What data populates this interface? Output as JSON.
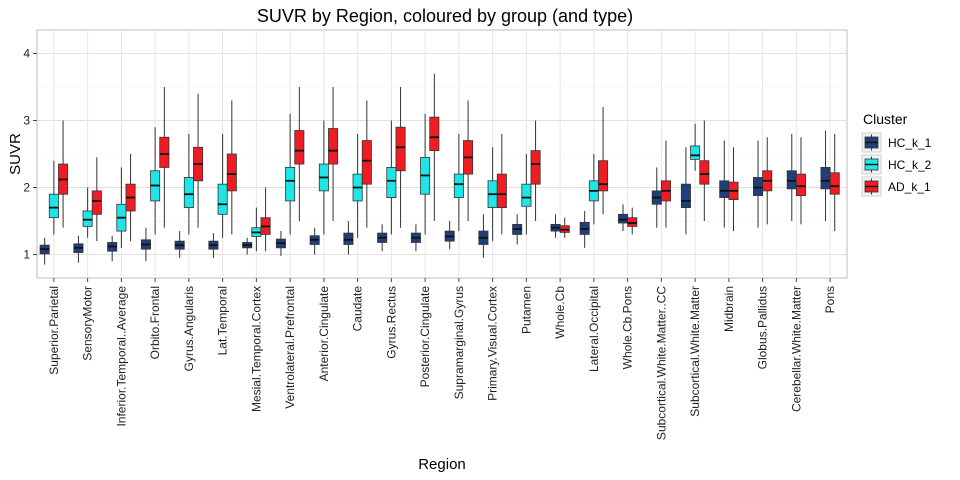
{
  "chart_data": {
    "type": "boxplot",
    "title": "SUVR by Region, coloured by group (and type)",
    "xlabel": "Region",
    "ylabel": "SUVR",
    "ylim": [
      0.65,
      4.35
    ],
    "yticks": [
      1,
      2,
      3,
      4
    ],
    "grid": true,
    "legend_position": "right",
    "legend_title": "Cluster",
    "groups": [
      {
        "name": "HC_k_1",
        "color": "#1f3f7a"
      },
      {
        "name": "HC_k_2",
        "color": "#1ee6e6"
      },
      {
        "name": "AD_k_1",
        "color": "#f01c24"
      }
    ],
    "categories": [
      "Superior.Parietal",
      "SensoryMotor",
      "Inferior.Temporal..Average",
      "Orbito.Frontal",
      "Gyrus.Angularis",
      "Lat.Temporal",
      "Mesial.Temporal.Cortex",
      "Ventrolateral.Prefrontal",
      "Anterior.Cingulate",
      "Caudate",
      "Gyrus.Rectus",
      "Posterior.Cingulate",
      "Supramarginal.Gyrus",
      "Primary.Visual.Cortex",
      "Putamen",
      "Whole.Cb",
      "Lateral.Occipital",
      "Whole.Cb.Pons",
      "Subcortical.White.Matter..CC",
      "Subcortical.White.Matter",
      "Midbrain",
      "Globus.Pallidus",
      "Cerebellar.White.Matter",
      "Pons"
    ],
    "boxes": [
      [
        [
          0.85,
          1.01,
          1.08,
          1.14,
          1.25
        ],
        [
          1.3,
          1.55,
          1.7,
          1.9,
          2.4
        ],
        [
          1.4,
          1.9,
          2.12,
          2.35,
          3.0
        ]
      ],
      [
        [
          0.88,
          1.03,
          1.1,
          1.16,
          1.28
        ],
        [
          1.25,
          1.42,
          1.52,
          1.65,
          2.0
        ],
        [
          1.2,
          1.6,
          1.8,
          1.95,
          2.45
        ]
      ],
      [
        [
          0.9,
          1.05,
          1.12,
          1.18,
          1.28
        ],
        [
          1.1,
          1.35,
          1.55,
          1.75,
          2.3
        ],
        [
          1.2,
          1.65,
          1.85,
          2.05,
          2.5
        ]
      ],
      [
        [
          0.9,
          1.08,
          1.15,
          1.22,
          1.4
        ],
        [
          1.3,
          1.8,
          2.03,
          2.25,
          2.9
        ],
        [
          1.4,
          2.3,
          2.5,
          2.75,
          3.5
        ]
      ],
      [
        [
          0.95,
          1.08,
          1.14,
          1.2,
          1.35
        ],
        [
          1.3,
          1.7,
          1.9,
          2.15,
          2.8
        ],
        [
          1.4,
          2.1,
          2.35,
          2.6,
          3.4
        ]
      ],
      [
        [
          0.95,
          1.08,
          1.14,
          1.2,
          1.32
        ],
        [
          1.25,
          1.6,
          1.75,
          2.05,
          2.8
        ],
        [
          1.3,
          1.95,
          2.2,
          2.5,
          3.3
        ]
      ],
      [
        [
          1.0,
          1.1,
          1.14,
          1.18,
          1.25
        ],
        [
          1.05,
          1.27,
          1.33,
          1.4,
          1.7
        ],
        [
          1.05,
          1.3,
          1.42,
          1.55,
          2.0
        ]
      ],
      [
        [
          0.98,
          1.1,
          1.17,
          1.23,
          1.35
        ],
        [
          1.3,
          1.8,
          2.1,
          2.3,
          3.1
        ],
        [
          1.5,
          2.35,
          2.55,
          2.85,
          3.5
        ]
      ],
      [
        [
          1.0,
          1.15,
          1.22,
          1.28,
          1.4
        ],
        [
          1.3,
          1.95,
          2.15,
          2.35,
          3.0
        ],
        [
          1.5,
          2.35,
          2.55,
          2.88,
          3.5
        ]
      ],
      [
        [
          1.0,
          1.15,
          1.22,
          1.32,
          1.5
        ],
        [
          1.25,
          1.8,
          2.0,
          2.2,
          2.8
        ],
        [
          1.4,
          2.05,
          2.4,
          2.7,
          3.3
        ]
      ],
      [
        [
          1.05,
          1.18,
          1.25,
          1.32,
          1.45
        ],
        [
          1.3,
          1.85,
          2.1,
          2.3,
          3.0
        ],
        [
          1.4,
          2.25,
          2.6,
          2.9,
          3.5
        ]
      ],
      [
        [
          1.05,
          1.18,
          1.25,
          1.32,
          1.45
        ],
        [
          1.3,
          1.9,
          2.18,
          2.45,
          3.1
        ],
        [
          1.5,
          2.55,
          2.75,
          3.05,
          3.7
        ]
      ],
      [
        [
          1.08,
          1.2,
          1.27,
          1.35,
          1.5
        ],
        [
          1.35,
          1.85,
          2.05,
          2.2,
          2.8
        ],
        [
          1.5,
          2.2,
          2.45,
          2.7,
          3.3
        ]
      ],
      [
        [
          0.95,
          1.15,
          1.25,
          1.35,
          1.6
        ],
        [
          1.2,
          1.7,
          1.9,
          2.1,
          2.6
        ],
        [
          1.3,
          1.7,
          1.9,
          2.2,
          2.8
        ]
      ],
      [
        [
          1.15,
          1.3,
          1.38,
          1.45,
          1.6
        ],
        [
          1.3,
          1.72,
          1.85,
          2.05,
          2.5
        ],
        [
          1.5,
          2.05,
          2.35,
          2.55,
          3.0
        ]
      ],
      [
        [
          1.25,
          1.35,
          1.4,
          1.45,
          1.6
        ],
        [
          null,
          null,
          null,
          null,
          null
        ],
        [
          1.25,
          1.33,
          1.37,
          1.43,
          1.55
        ]
      ],
      [
        [
          1.1,
          1.3,
          1.38,
          1.48,
          1.65
        ],
        [
          1.45,
          1.8,
          1.95,
          2.1,
          2.5
        ],
        [
          1.6,
          1.95,
          2.05,
          2.4,
          3.2
        ]
      ],
      [
        [
          1.35,
          1.47,
          1.52,
          1.6,
          1.75
        ],
        [
          null,
          null,
          null,
          null,
          null
        ],
        [
          1.3,
          1.42,
          1.47,
          1.55,
          1.7
        ]
      ],
      [
        [
          1.4,
          1.75,
          1.85,
          1.95,
          2.3
        ],
        [
          null,
          null,
          null,
          null,
          null
        ],
        [
          1.4,
          1.8,
          1.95,
          2.1,
          2.7
        ]
      ],
      [
        [
          1.3,
          1.7,
          1.8,
          2.05,
          2.6
        ],
        [
          2.25,
          2.42,
          2.48,
          2.62,
          2.95
        ],
        [
          1.5,
          2.05,
          2.2,
          2.4,
          3.0
        ]
      ],
      [
        [
          1.4,
          1.85,
          1.95,
          2.1,
          2.7
        ],
        [
          null,
          null,
          null,
          null,
          null
        ],
        [
          1.35,
          1.82,
          1.95,
          2.08,
          2.6
        ]
      ],
      [
        [
          1.4,
          1.88,
          2.0,
          2.15,
          2.7
        ],
        [
          null,
          null,
          null,
          null,
          null
        ],
        [
          1.45,
          1.95,
          2.1,
          2.25,
          2.75
        ]
      ],
      [
        [
          1.5,
          1.98,
          2.1,
          2.25,
          2.8
        ],
        [
          null,
          null,
          null,
          null,
          null
        ],
        [
          1.45,
          1.88,
          2.02,
          2.2,
          2.75
        ]
      ],
      [
        [
          1.5,
          1.98,
          2.1,
          2.3,
          2.85
        ],
        [
          null,
          null,
          null,
          null,
          null
        ],
        [
          1.35,
          1.9,
          2.02,
          2.22,
          2.8
        ]
      ]
    ]
  }
}
